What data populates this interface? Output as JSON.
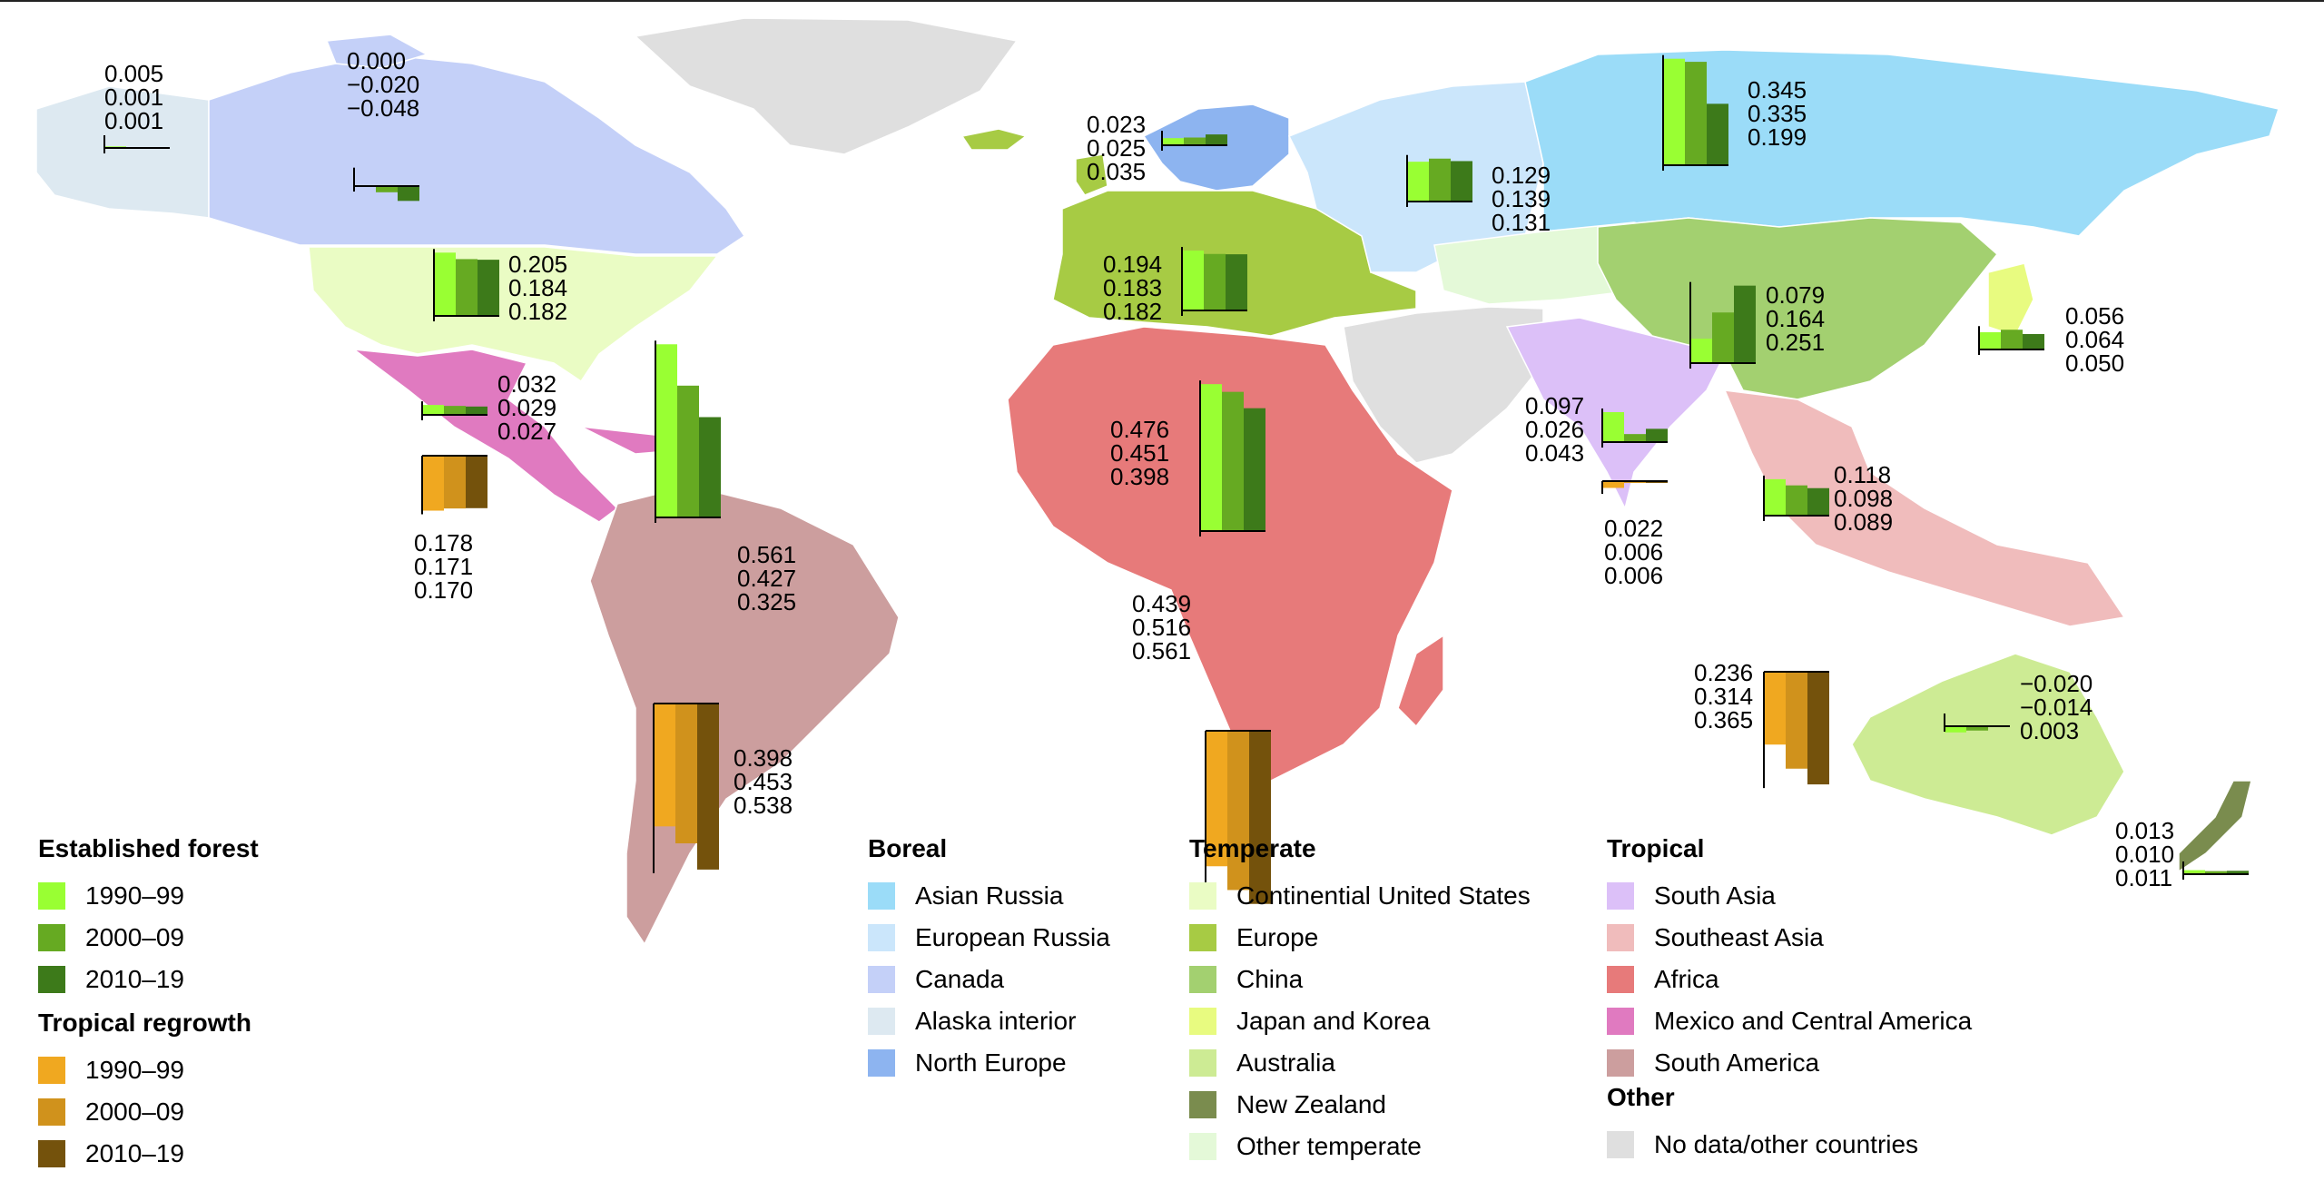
{
  "colors": {
    "ocean": "#ffffff",
    "est_1990": "#99ff33",
    "est_2000": "#66aa22",
    "est_2010": "#3d7a1a",
    "trop_1990": "#f0a820",
    "trop_2000": "#d0921c",
    "trop_2010": "#74520c",
    "asian_russia": "#9bdcf8",
    "european_russia": "#cbe6fb",
    "canada": "#c4d0f8",
    "alaska_interior": "#dde9f1",
    "north_europe": "#8db4f0",
    "continental_us": "#eafcc4",
    "europe": "#a7cb44",
    "china": "#a3d070",
    "japan_korea": "#e8fb80",
    "australia": "#cdeb94",
    "new_zealand": "#7a8c4e",
    "other_temperate": "#e4f9d8",
    "south_asia": "#dcc0f8",
    "southeast_asia": "#f0bcbc",
    "africa": "#e77a7a",
    "mexico_central_america": "#e07ac0",
    "south_america": "#cc9e9e",
    "no_data": "#dfdfdf"
  },
  "legend_established": {
    "title": "Established forest",
    "items": [
      {
        "label": "1990–99",
        "color": "#99ff33"
      },
      {
        "label": "2000–09",
        "color": "#66aa22"
      },
      {
        "label": "2010–19",
        "color": "#3d7a1a"
      }
    ]
  },
  "legend_tropical_regrowth": {
    "title": "Tropical regrowth",
    "items": [
      {
        "label": "1990–99",
        "color": "#f0a820"
      },
      {
        "label": "2000–09",
        "color": "#d0921c"
      },
      {
        "label": "2010–19",
        "color": "#74520c"
      }
    ]
  },
  "legend_boreal": {
    "title": "Boreal",
    "items": [
      {
        "label": "Asian Russia",
        "color": "#9bdcf8"
      },
      {
        "label": "European Russia",
        "color": "#cbe6fb"
      },
      {
        "label": "Canada",
        "color": "#c4d0f8"
      },
      {
        "label": "Alaska interior",
        "color": "#dde9f1"
      },
      {
        "label": "North Europe",
        "color": "#8db4f0"
      }
    ]
  },
  "legend_temperate": {
    "title": "Temperate",
    "items": [
      {
        "label": "Continential United States",
        "color": "#eafcc4"
      },
      {
        "label": "Europe",
        "color": "#a7cb44"
      },
      {
        "label": "China",
        "color": "#a3d070"
      },
      {
        "label": "Japan and Korea",
        "color": "#e8fb80"
      },
      {
        "label": "Australia",
        "color": "#cdeb94"
      },
      {
        "label": "New Zealand",
        "color": "#7a8c4e"
      },
      {
        "label": "Other temperate",
        "color": "#e4f9d8"
      }
    ]
  },
  "legend_tropical": {
    "title": "Tropical",
    "items": [
      {
        "label": "South Asia",
        "color": "#dcc0f8"
      },
      {
        "label": "Southeast Asia",
        "color": "#f0bcbc"
      },
      {
        "label": "Africa",
        "color": "#e77a7a"
      },
      {
        "label": "Mexico and Central America",
        "color": "#e07ac0"
      },
      {
        "label": "South America",
        "color": "#cc9e9e"
      }
    ]
  },
  "legend_other": {
    "title": "Other",
    "items": [
      {
        "label": "No data/other countries",
        "color": "#dfdfdf"
      }
    ]
  },
  "chart_data": {
    "type": "bar",
    "scale_max": 0.6,
    "series_names": [
      "1990–99",
      "2000–09",
      "2010–19"
    ],
    "groups": [
      {
        "region": "Alaska interior",
        "kind": "established",
        "values": [
          0.005,
          0.001,
          0.001
        ],
        "labels": [
          "0.005",
          "0.001",
          "0.001"
        ]
      },
      {
        "region": "Canada",
        "kind": "established",
        "values": [
          0.0,
          -0.02,
          -0.048
        ],
        "labels": [
          "0.000",
          "−0.020",
          "−0.048"
        ]
      },
      {
        "region": "Continential United States",
        "kind": "established",
        "values": [
          0.205,
          0.184,
          0.182
        ],
        "labels": [
          "0.205",
          "0.184",
          "0.182"
        ]
      },
      {
        "region": "Mexico and Central America",
        "kind": "established",
        "values": [
          0.032,
          0.029,
          0.027
        ],
        "labels": [
          "0.032",
          "0.029",
          "0.027"
        ]
      },
      {
        "region": "Mexico and Central America",
        "kind": "regrowth",
        "values": [
          0.178,
          0.171,
          0.17
        ],
        "labels": [
          "0.178",
          "0.171",
          "0.170"
        ]
      },
      {
        "region": "South America",
        "kind": "established",
        "values": [
          0.561,
          0.427,
          0.325
        ],
        "labels": [
          "0.561",
          "0.427",
          "0.325"
        ]
      },
      {
        "region": "South America",
        "kind": "regrowth",
        "values": [
          0.398,
          0.453,
          0.538
        ],
        "labels": [
          "0.398",
          "0.453",
          "0.538"
        ]
      },
      {
        "region": "North Europe",
        "kind": "established",
        "values": [
          0.023,
          0.025,
          0.035
        ],
        "labels": [
          "0.023",
          "0.025",
          "0.035"
        ]
      },
      {
        "region": "Europe",
        "kind": "established",
        "values": [
          0.194,
          0.183,
          0.182
        ],
        "labels": [
          "0.194",
          "0.183",
          "0.182"
        ]
      },
      {
        "region": "Africa",
        "kind": "established",
        "values": [
          0.476,
          0.451,
          0.398
        ],
        "labels": [
          "0.476",
          "0.451",
          "0.398"
        ]
      },
      {
        "region": "Africa",
        "kind": "regrowth",
        "values": [
          0.439,
          0.516,
          0.561
        ],
        "labels": [
          "0.439",
          "0.516",
          "0.561"
        ]
      },
      {
        "region": "European Russia",
        "kind": "established",
        "values": [
          0.129,
          0.139,
          0.131
        ],
        "labels": [
          "0.129",
          "0.139",
          "0.131"
        ]
      },
      {
        "region": "Asian Russia",
        "kind": "established",
        "values": [
          0.345,
          0.335,
          0.199
        ],
        "labels": [
          "0.345",
          "0.335",
          "0.199"
        ]
      },
      {
        "region": "China",
        "kind": "established",
        "values": [
          0.079,
          0.164,
          0.251
        ],
        "labels": [
          "0.079",
          "0.164",
          "0.251"
        ]
      },
      {
        "region": "Japan and Korea",
        "kind": "established",
        "values": [
          0.056,
          0.064,
          0.05
        ],
        "labels": [
          "0.056",
          "0.064",
          "0.050"
        ]
      },
      {
        "region": "South Asia",
        "kind": "established",
        "values": [
          0.097,
          0.026,
          0.043
        ],
        "labels": [
          "0.097",
          "0.026",
          "0.043"
        ]
      },
      {
        "region": "South Asia",
        "kind": "regrowth",
        "values": [
          0.022,
          0.006,
          0.006
        ],
        "labels": [
          "0.022",
          "0.006",
          "0.006"
        ]
      },
      {
        "region": "Southeast Asia",
        "kind": "established",
        "values": [
          0.118,
          0.098,
          0.089
        ],
        "labels": [
          "0.118",
          "0.098",
          "0.089"
        ]
      },
      {
        "region": "Southeast Asia",
        "kind": "regrowth",
        "values": [
          0.236,
          0.314,
          0.365
        ],
        "labels": [
          "0.236",
          "0.314",
          "0.365"
        ]
      },
      {
        "region": "Australia",
        "kind": "established",
        "values": [
          -0.02,
          -0.014,
          0.003
        ],
        "labels": [
          "−0.020",
          "−0.014",
          "0.003"
        ]
      },
      {
        "region": "New Zealand",
        "kind": "established",
        "values": [
          0.013,
          0.01,
          0.011
        ],
        "labels": [
          "0.013",
          "0.010",
          "0.011"
        ]
      }
    ]
  }
}
